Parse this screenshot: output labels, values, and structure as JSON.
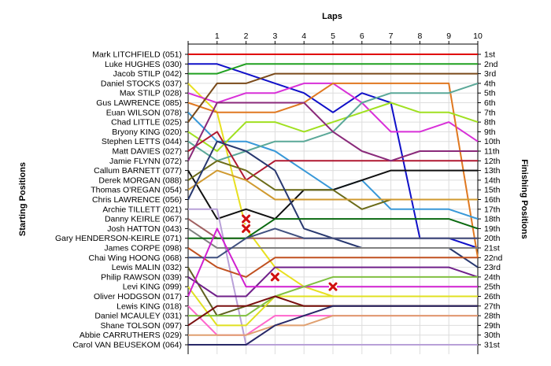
{
  "chart_data": {
    "type": "line",
    "title": "Laps",
    "left_axis_title": "Starting Positions",
    "right_axis_title": "Finishing Positions",
    "laps": [
      1,
      2,
      3,
      4,
      5,
      6,
      7,
      8,
      9,
      10
    ],
    "finishing_labels": [
      "1st",
      "2nd",
      "3rd",
      "4th",
      "5th",
      "6th",
      "7th",
      "8th",
      "9th",
      "10th",
      "11th",
      "12th",
      "13th",
      "14th",
      "15th",
      "16th",
      "17th",
      "18th",
      "19th",
      "20th",
      "21st",
      "22nd",
      "23rd",
      "24th",
      "25th",
      "26th",
      "27th",
      "28th",
      "29th",
      "30th",
      "31st"
    ],
    "grid": true,
    "series": [
      {
        "name": "Mark LITCHFIELD (051)",
        "color": "#e00000",
        "positions": [
          1,
          1,
          1,
          1,
          1,
          1,
          1,
          1,
          1,
          1,
          1
        ]
      },
      {
        "name": "Luke HUGHES (030)",
        "color": "#1010c8",
        "positions": [
          2,
          2,
          3,
          4,
          5,
          7,
          5,
          6,
          20,
          20,
          21
        ]
      },
      {
        "name": "Jacob STILP (042)",
        "color": "#20a020",
        "positions": [
          3,
          3,
          2,
          2,
          2,
          2,
          2,
          2,
          2,
          2,
          2
        ]
      },
      {
        "name": "Daniel STOCKS (037)",
        "color": "#e8e020",
        "positions": [
          4,
          7,
          19,
          23,
          25,
          26,
          26,
          26,
          26,
          26,
          26
        ]
      },
      {
        "name": "Max STILP (028)",
        "color": "#d830d8",
        "positions": [
          5,
          6,
          5,
          5,
          4,
          4,
          6,
          9,
          9,
          8,
          10
        ]
      },
      {
        "name": "Gus LAWRENCE (085)",
        "color": "#e07820",
        "positions": [
          6,
          7,
          7,
          7,
          6,
          4,
          4,
          4,
          4,
          4,
          22
        ]
      },
      {
        "name": "Euan WILSON (078)",
        "color": "#3898d8",
        "positions": [
          7,
          10,
          10,
          11,
          13,
          15,
          14,
          17,
          17,
          17,
          18
        ]
      },
      {
        "name": "Chad LITTLE (025)",
        "color": "#7a4a1a",
        "positions": [
          8,
          4,
          4,
          3,
          3,
          3,
          3,
          3,
          3,
          3,
          3
        ]
      },
      {
        "name": "Bryony KING (020)",
        "color": "#a0e020",
        "positions": [
          9,
          11,
          8,
          8,
          9,
          8,
          7,
          6,
          7,
          7,
          8
        ]
      },
      {
        "name": "Stephen LETTS (044)",
        "color": "#5aa898",
        "positions": [
          10,
          12,
          11,
          10,
          10,
          9,
          6,
          5,
          5,
          5,
          4
        ]
      },
      {
        "name": "Matt DAVIES (027)",
        "color": "#b01830",
        "positions": [
          11,
          9,
          14,
          12,
          12,
          12,
          12,
          12,
          12,
          12,
          12
        ]
      },
      {
        "name": "Jamie FLYNN (072)",
        "color": "#8a2a7a",
        "positions": [
          12,
          6,
          6,
          6,
          6,
          9,
          11,
          12,
          11,
          11,
          11
        ]
      },
      {
        "name": "Callum BARNETT (077)",
        "color": "#101010",
        "positions": [
          13,
          18,
          17,
          18,
          15,
          15,
          14,
          13,
          13,
          13,
          13
        ]
      },
      {
        "name": "Derek MORGAN (088)",
        "color": "#6b6b18",
        "positions": [
          14,
          12,
          13,
          15,
          15,
          15,
          17,
          16,
          16,
          16,
          16
        ]
      },
      {
        "name": "Thomas O'REGAN (054)",
        "color": "#d09a30",
        "positions": [
          15,
          13,
          14,
          16,
          16,
          16,
          16,
          16,
          16,
          16,
          16
        ]
      },
      {
        "name": "Chris LAWRENCE (056)",
        "color": "#283870",
        "positions": [
          16,
          10,
          11,
          13,
          19,
          20,
          21,
          21,
          21,
          21,
          23
        ]
      },
      {
        "name": "Archie TILLETT (021)",
        "color": "#b8a0d8",
        "positions": [
          17,
          17,
          31,
          31,
          31,
          31,
          31,
          31,
          31,
          31,
          31
        ]
      },
      {
        "name": "Danny KEIRLE (067)",
        "color": "#a06060",
        "positions": [
          18,
          20,
          20,
          20,
          20,
          20,
          20,
          20,
          20,
          20,
          20
        ]
      },
      {
        "name": "Josh HATTON (043)",
        "color": "#808080",
        "positions": [
          19,
          21,
          21,
          21,
          21,
          21,
          21,
          21,
          21,
          21,
          21
        ]
      },
      {
        "name": "Gary HENDERSON-KEIRLE (071)",
        "color": "#0a6a10",
        "positions": [
          20,
          20,
          20,
          18,
          18,
          18,
          18,
          18,
          18,
          18,
          19
        ]
      },
      {
        "name": "James CORPE (098)",
        "color": "#c05020",
        "positions": [
          21,
          23,
          24,
          22,
          22,
          22,
          22,
          22,
          22,
          22,
          22
        ]
      },
      {
        "name": "Chai Wing HOONG (068)",
        "color": "#405080",
        "positions": [
          22,
          22,
          20,
          19,
          20,
          20,
          20,
          20,
          20,
          20,
          20
        ]
      },
      {
        "name": "Lewis MALIN (032)",
        "color": "#606020",
        "positions": [
          23,
          28,
          27,
          27,
          27,
          27,
          27,
          27,
          27,
          27,
          27
        ]
      },
      {
        "name": "Philip RAWSON (039)",
        "color": "#70208a",
        "positions": [
          24,
          26,
          26,
          23,
          23,
          23,
          23,
          23,
          23,
          23,
          24
        ]
      },
      {
        "name": "Levi KING (099)",
        "color": "#e0e020",
        "positions": [
          25,
          29,
          29,
          26,
          26,
          26,
          26,
          26,
          26,
          26,
          26
        ]
      },
      {
        "name": "Oliver HODGSON (017)",
        "color": "#d020d0",
        "positions": [
          26,
          19,
          25,
          25,
          25,
          25,
          25,
          25,
          25,
          25,
          25
        ]
      },
      {
        "name": "Lewis KING (018)",
        "color": "#ff66cc",
        "positions": [
          27,
          30,
          30,
          28,
          28,
          28,
          28,
          28,
          28,
          28,
          28
        ]
      },
      {
        "name": "Daniel MCAULEY (031)",
        "color": "#80c040",
        "positions": [
          28,
          28,
          28,
          26,
          25,
          24,
          24,
          24,
          24,
          24,
          24
        ]
      },
      {
        "name": "Shane TOLSON (097)",
        "color": "#7a1010",
        "positions": [
          29,
          27,
          27,
          26,
          27,
          27,
          27,
          27,
          27,
          27,
          27
        ]
      },
      {
        "name": "Abbie CARRUTHERS (029)",
        "color": "#e0a070",
        "positions": [
          30,
          30,
          30,
          29,
          29,
          28,
          28,
          28,
          28,
          28,
          28
        ]
      },
      {
        "name": "Carol VAN BEUSEKOM (064)",
        "color": "#282868",
        "positions": [
          31,
          31,
          31,
          29,
          28,
          27,
          27,
          27,
          27,
          27,
          27
        ]
      }
    ],
    "retirements": [
      {
        "driver": "Danny KEIRLE (067)",
        "lap": 2,
        "position": 18
      },
      {
        "driver": "Josh HATTON (043)",
        "lap": 2,
        "position": 19
      },
      {
        "driver": "Philip RAWSON (039)",
        "lap": 3,
        "position": 24
      },
      {
        "driver": "Levi KING (099)",
        "lap": 5,
        "position": 25
      }
    ]
  }
}
